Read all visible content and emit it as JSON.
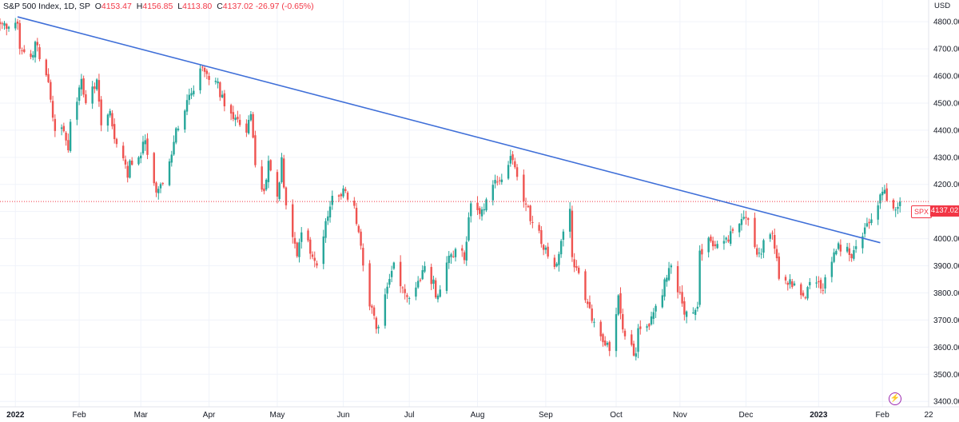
{
  "header": {
    "symbol_line": "S&P 500 Index, 1D, SP",
    "o_label": "O",
    "o_value": "4153.47",
    "h_label": "H",
    "h_value": "4156.85",
    "l_label": "L",
    "l_value": "4113.80",
    "c_label": "C",
    "c_value": "4137.02",
    "change": "-26.97 (-0.65%)"
  },
  "price_axis": {
    "unit": "USD",
    "ticks": [
      "4800.00",
      "4700.00",
      "4600.00",
      "4500.00",
      "4400.00",
      "4300.00",
      "4200.00",
      "4100.00",
      "4000.00",
      "3900.00",
      "3800.00",
      "3700.00",
      "3600.00",
      "3500.00",
      "3400.00"
    ]
  },
  "last_price_badge": {
    "symbol": "SPX",
    "value": "4137.02"
  },
  "icons": {
    "bolt": "lightning-icon"
  },
  "colors": {
    "up": "#26a69a",
    "down": "#ef5350",
    "trendline": "#3f6fd8",
    "last_price_line": "#f23645",
    "bolt": "#9c27b0"
  },
  "chart_data": {
    "type": "candlestick",
    "title": "S&P 500 Index, 1D, SP",
    "ylabel": "USD",
    "ylim": [
      3380,
      4880
    ],
    "grid": true,
    "x_ticks": [
      {
        "label": "2022",
        "date": "2022-01-03",
        "bold": true
      },
      {
        "label": "Feb",
        "date": "2022-02-01"
      },
      {
        "label": "Mar",
        "date": "2022-03-01"
      },
      {
        "label": "Apr",
        "date": "2022-04-01"
      },
      {
        "label": "May",
        "date": "2022-05-02"
      },
      {
        "label": "Jun",
        "date": "2022-06-01"
      },
      {
        "label": "Jul",
        "date": "2022-07-01"
      },
      {
        "label": "Aug",
        "date": "2022-08-01"
      },
      {
        "label": "Sep",
        "date": "2022-09-01"
      },
      {
        "label": "Oct",
        "date": "2022-10-03"
      },
      {
        "label": "Nov",
        "date": "2022-11-01"
      },
      {
        "label": "Dec",
        "date": "2022-12-01"
      },
      {
        "label": "2023",
        "date": "2023-01-03",
        "bold": true
      },
      {
        "label": "Feb",
        "date": "2023-02-01"
      },
      {
        "label": "22",
        "date": "2023-02-22"
      }
    ],
    "date_range": [
      "2021-12-27",
      "2023-02-22"
    ],
    "close_anchors": [
      [
        "2021-12-27",
        4791
      ],
      [
        "2022-01-03",
        4796
      ],
      [
        "2022-01-04",
        4793
      ],
      [
        "2022-01-05",
        4700
      ],
      [
        "2022-01-10",
        4670
      ],
      [
        "2022-01-12",
        4726
      ],
      [
        "2022-01-14",
        4662
      ],
      [
        "2022-01-18",
        4577
      ],
      [
        "2022-01-21",
        4397
      ],
      [
        "2022-01-24",
        4410
      ],
      [
        "2022-01-27",
        4326
      ],
      [
        "2022-01-28",
        4431
      ],
      [
        "2022-02-02",
        4589
      ],
      [
        "2022-02-04",
        4500
      ],
      [
        "2022-02-09",
        4587
      ],
      [
        "2022-02-11",
        4418
      ],
      [
        "2022-02-15",
        4471
      ],
      [
        "2022-02-18",
        4349
      ],
      [
        "2022-02-23",
        4225
      ],
      [
        "2022-02-24",
        4288
      ],
      [
        "2022-03-01",
        4306
      ],
      [
        "2022-03-03",
        4363
      ],
      [
        "2022-03-08",
        4170
      ],
      [
        "2022-03-11",
        4204
      ],
      [
        "2022-03-16",
        4357
      ],
      [
        "2022-03-22",
        4511
      ],
      [
        "2022-03-29",
        4631
      ],
      [
        "2022-04-04",
        4582
      ],
      [
        "2022-04-08",
        4488
      ],
      [
        "2022-04-13",
        4446
      ],
      [
        "2022-04-18",
        4391
      ],
      [
        "2022-04-20",
        4459
      ],
      [
        "2022-04-22",
        4271
      ],
      [
        "2022-04-26",
        4175
      ],
      [
        "2022-04-28",
        4287
      ],
      [
        "2022-05-02",
        4155
      ],
      [
        "2022-05-04",
        4300
      ],
      [
        "2022-05-06",
        4123
      ],
      [
        "2022-05-11",
        3935
      ],
      [
        "2022-05-13",
        4023
      ],
      [
        "2022-05-20",
        3901
      ],
      [
        "2022-05-27",
        4158
      ],
      [
        "2022-06-02",
        4176
      ],
      [
        "2022-06-06",
        4121
      ],
      [
        "2022-06-10",
        3901
      ],
      [
        "2022-06-13",
        3750
      ],
      [
        "2022-06-16",
        3667
      ],
      [
        "2022-06-17",
        3675
      ],
      [
        "2022-06-24",
        3912
      ],
      [
        "2022-06-30",
        3785
      ],
      [
        "2022-07-06",
        3845
      ],
      [
        "2022-07-08",
        3899
      ],
      [
        "2022-07-14",
        3790
      ],
      [
        "2022-07-19",
        3937
      ],
      [
        "2022-07-22",
        3962
      ],
      [
        "2022-07-26",
        3921
      ],
      [
        "2022-07-29",
        4130
      ],
      [
        "2022-08-02",
        4091
      ],
      [
        "2022-08-05",
        4145
      ],
      [
        "2022-08-10",
        4210
      ],
      [
        "2022-08-16",
        4305
      ],
      [
        "2022-08-19",
        4228
      ],
      [
        "2022-08-22",
        4138
      ],
      [
        "2022-08-26",
        4058
      ],
      [
        "2022-09-01",
        3967
      ],
      [
        "2022-09-06",
        3908
      ],
      [
        "2022-09-12",
        4110
      ],
      [
        "2022-09-13",
        3932
      ],
      [
        "2022-09-16",
        3873
      ],
      [
        "2022-09-23",
        3693
      ],
      [
        "2022-09-30",
        3586
      ],
      [
        "2022-10-04",
        3791
      ],
      [
        "2022-10-07",
        3640
      ],
      [
        "2022-10-12",
        3577
      ],
      [
        "2022-10-13",
        3670
      ],
      [
        "2022-10-17",
        3677
      ],
      [
        "2022-10-21",
        3752
      ],
      [
        "2022-10-28",
        3901
      ],
      [
        "2022-11-03",
        3720
      ],
      [
        "2022-11-09",
        3749
      ],
      [
        "2022-11-10",
        3956
      ],
      [
        "2022-11-15",
        3991
      ],
      [
        "2022-11-22",
        4003
      ],
      [
        "2022-11-30",
        4080
      ],
      [
        "2022-12-01",
        4076
      ],
      [
        "2022-12-06",
        3941
      ],
      [
        "2022-12-13",
        4019
      ],
      [
        "2022-12-16",
        3852
      ],
      [
        "2022-12-22",
        3822
      ],
      [
        "2022-12-28",
        3783
      ],
      [
        "2022-12-30",
        3840
      ],
      [
        "2023-01-05",
        3808
      ],
      [
        "2023-01-12",
        3983
      ],
      [
        "2023-01-18",
        3928
      ],
      [
        "2023-01-20",
        3972
      ],
      [
        "2023-01-27",
        4071
      ],
      [
        "2023-02-02",
        4180
      ],
      [
        "2023-02-06",
        4111
      ],
      [
        "2023-02-08",
        4117
      ],
      [
        "2023-02-09",
        4137
      ]
    ],
    "annotations": [
      {
        "type": "trendline",
        "from": {
          "date": "2022-01-04",
          "value": 4818
        },
        "to": {
          "date": "2023-01-31",
          "value": 3985
        }
      },
      {
        "type": "horizontal_line",
        "value": 4137.02,
        "style": "dotted"
      }
    ]
  }
}
